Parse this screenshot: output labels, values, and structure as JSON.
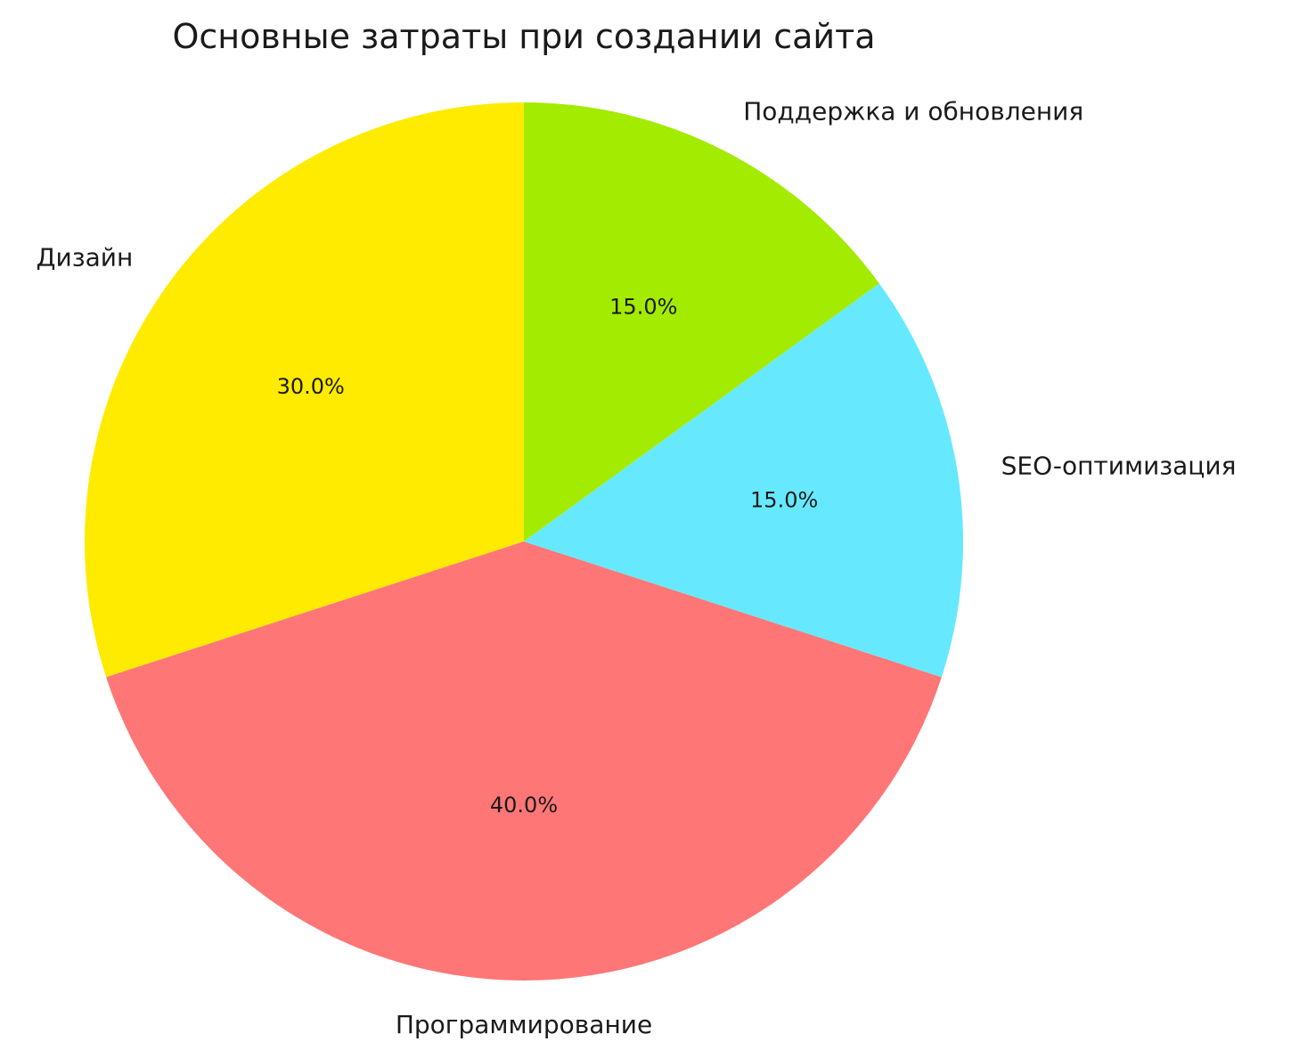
{
  "chart_data": {
    "type": "pie",
    "title": "Основные затраты при создании сайта",
    "start_angle_deg": 90,
    "direction": "counterclockwise",
    "slices": [
      {
        "label": "Дизайн",
        "value": 30,
        "pct_label": "30.0%",
        "color": "#FFEB00"
      },
      {
        "label": "Программирование",
        "value": 40,
        "pct_label": "40.0%",
        "color": "#FF7676"
      },
      {
        "label": "SEO-оптимизация",
        "value": 15,
        "pct_label": "15.0%",
        "color": "#66E9FF"
      },
      {
        "label": "Поддержка и обновления",
        "value": 15,
        "pct_label": "15.0%",
        "color": "#A3EB00"
      }
    ]
  }
}
